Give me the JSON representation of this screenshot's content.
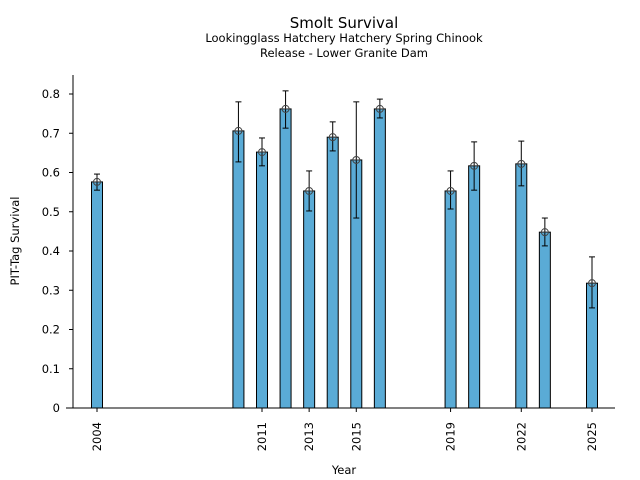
{
  "chart_data": {
    "type": "bar",
    "title": "Smolt Survival",
    "subtitle_lines": [
      "Lookingglass Hatchery Hatchery Spring Chinook",
      "Release - Lower Granite Dam"
    ],
    "xlabel": "Year",
    "ylabel": "PIT-Tag Survival",
    "ylim": [
      0,
      0.85
    ],
    "xlim": [
      2003,
      2026
    ],
    "yticks": [
      0,
      0.1,
      0.2,
      0.3,
      0.4,
      0.5,
      0.6,
      0.7,
      0.8
    ],
    "ytick_labels": [
      "0",
      "0.1",
      "0.2",
      "0.3",
      "0.4",
      "0.5",
      "0.6",
      "0.7",
      "0.8"
    ],
    "xticks": [
      2004,
      2011,
      2013,
      2015,
      2019,
      2022,
      2025
    ],
    "xtick_labels": [
      "2004",
      "2011",
      "2013",
      "2015",
      "2019",
      "2022",
      "2025"
    ],
    "grid": false,
    "bar_color": "#5aabd6",
    "edge_color": "#000000",
    "data": [
      {
        "year": 2004,
        "value": 0.576,
        "lower": 0.555,
        "upper": 0.596
      },
      {
        "year": 2010,
        "value": 0.706,
        "lower": 0.627,
        "upper": 0.78
      },
      {
        "year": 2011,
        "value": 0.652,
        "lower": 0.617,
        "upper": 0.688
      },
      {
        "year": 2012,
        "value": 0.762,
        "lower": 0.713,
        "upper": 0.808
      },
      {
        "year": 2013,
        "value": 0.553,
        "lower": 0.502,
        "upper": 0.604
      },
      {
        "year": 2014,
        "value": 0.69,
        "lower": 0.655,
        "upper": 0.729
      },
      {
        "year": 2015,
        "value": 0.632,
        "lower": 0.484,
        "upper": 0.78
      },
      {
        "year": 2016,
        "value": 0.762,
        "lower": 0.739,
        "upper": 0.787
      },
      {
        "year": 2019,
        "value": 0.553,
        "lower": 0.507,
        "upper": 0.604
      },
      {
        "year": 2020,
        "value": 0.617,
        "lower": 0.555,
        "upper": 0.678
      },
      {
        "year": 2022,
        "value": 0.622,
        "lower": 0.566,
        "upper": 0.68
      },
      {
        "year": 2023,
        "value": 0.448,
        "lower": 0.413,
        "upper": 0.484
      },
      {
        "year": 2025,
        "value": 0.318,
        "lower": 0.255,
        "upper": 0.385
      }
    ]
  }
}
